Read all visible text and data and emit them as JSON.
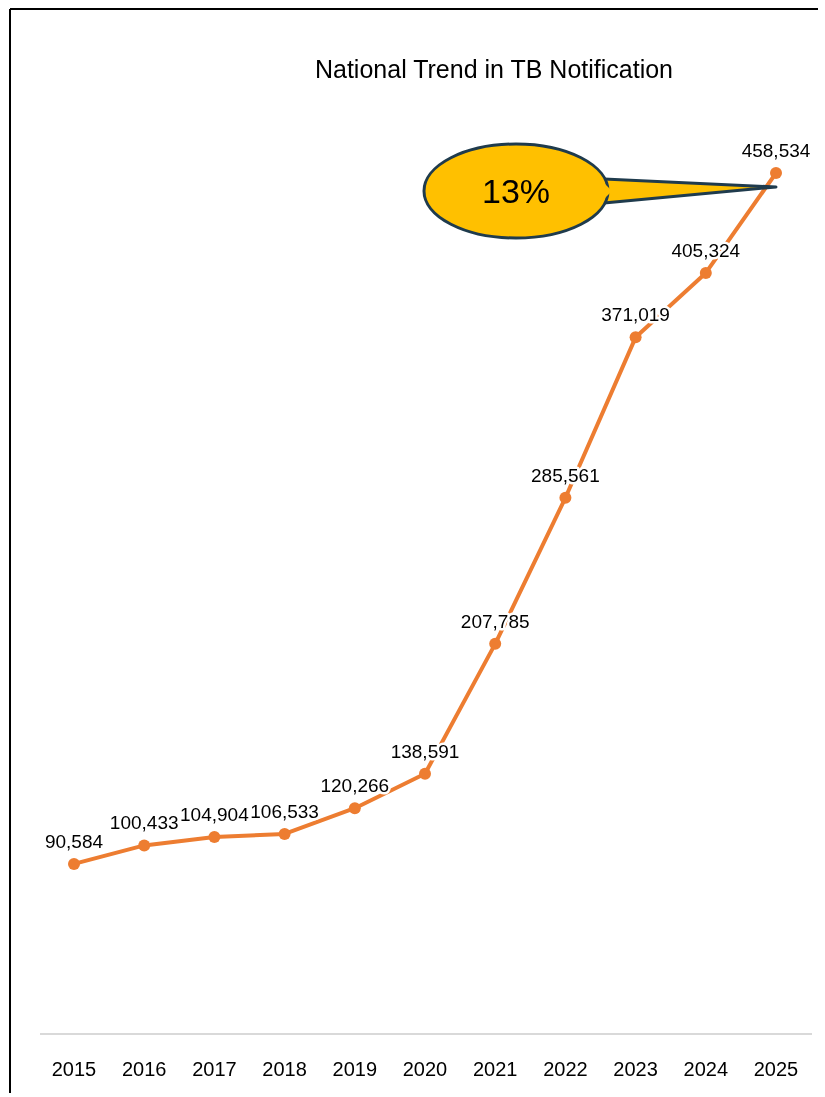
{
  "chart_data": {
    "type": "line",
    "title": "National Trend in TB Notification",
    "categories": [
      "2015",
      "2016",
      "2017",
      "2018",
      "2019",
      "2020",
      "2021",
      "2022",
      "2023",
      "2024",
      "2025"
    ],
    "series": [
      {
        "color": "#ed7d31",
        "values": [
          90584,
          100433,
          104904,
          106533,
          120266,
          138591,
          207785,
          285561,
          371019,
          405324,
          458534
        ],
        "value_labels": [
          "90,584",
          "100,433",
          "104,904",
          "106,533",
          "120,266",
          "138,591",
          "207,785",
          "285,561",
          "371,019",
          "405,324",
          "458,534"
        ]
      }
    ],
    "marker": "circle",
    "line_style": "solid",
    "annotations": [
      "13%"
    ]
  }
}
